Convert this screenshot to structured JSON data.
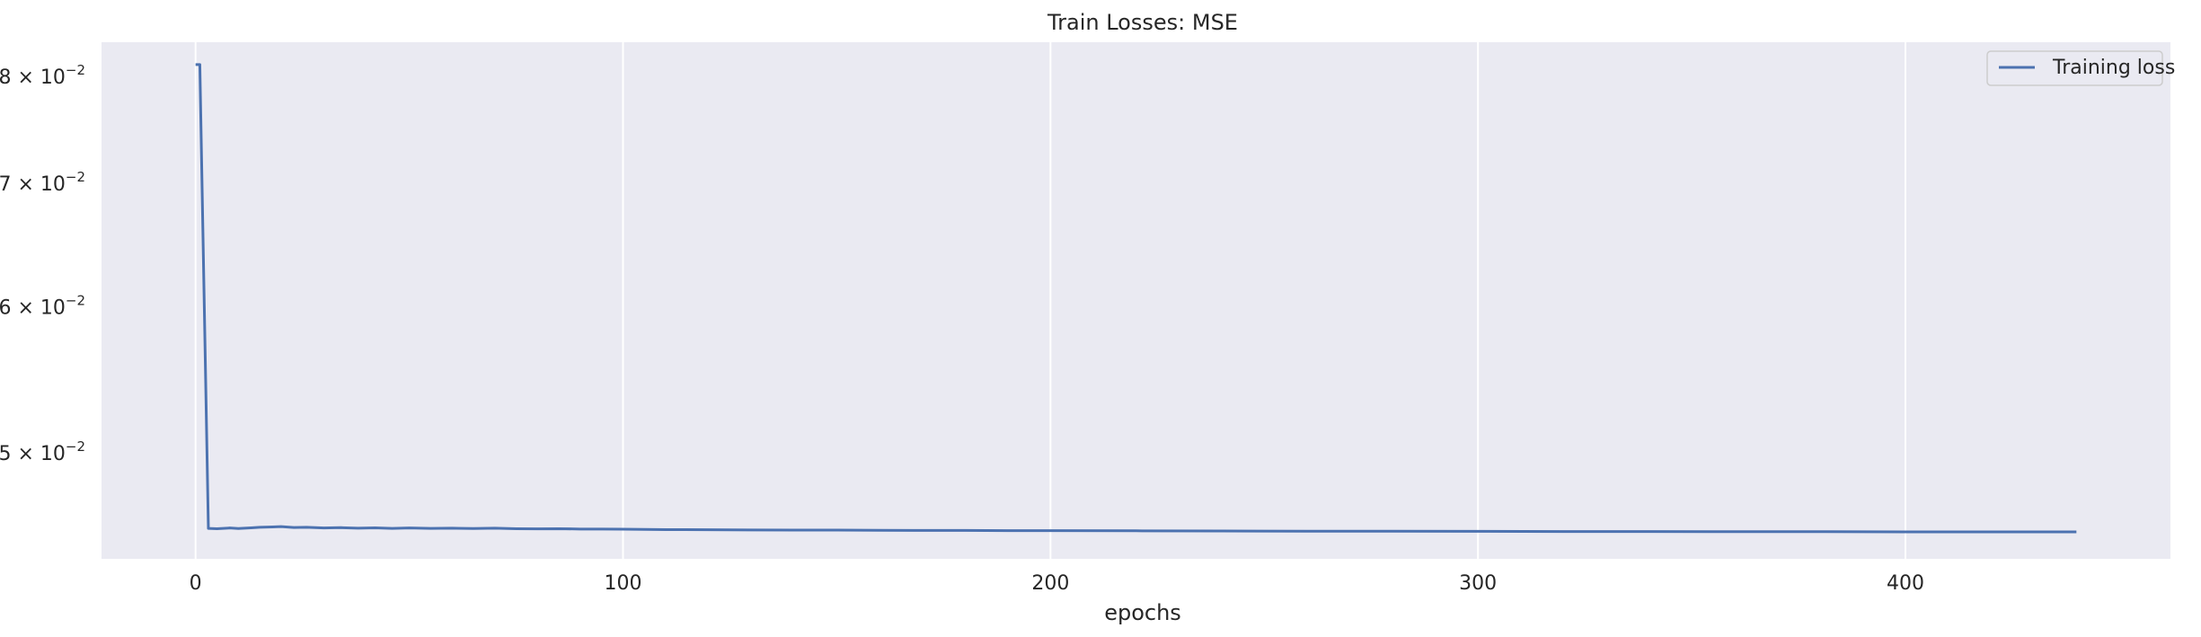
{
  "chart_data": {
    "type": "line",
    "title": "Train Losses:  MSE",
    "xlabel": "epochs",
    "ylabel": "",
    "yscale": "log",
    "xlim": [
      -22,
      462
    ],
    "ylim": [
      0.0438,
      0.0835
    ],
    "xticks": [
      0,
      100,
      200,
      300,
      400
    ],
    "yticks": [
      {
        "value": 0.08,
        "mantissa": "8",
        "base": "10",
        "exp": "−2"
      },
      {
        "value": 0.07,
        "mantissa": "7",
        "base": "10",
        "exp": "−2"
      },
      {
        "value": 0.06,
        "mantissa": "6",
        "base": "10",
        "exp": "−2"
      },
      {
        "value": 0.05,
        "mantissa": "5",
        "base": "10",
        "exp": "−2"
      }
    ],
    "grid": true,
    "legend_position": "top-right",
    "background_color": "#eaeaf2",
    "series": [
      {
        "name": "Training loss",
        "color": "#4c72b0",
        "points": [
          [
            0,
            0.0812
          ],
          [
            1,
            0.0812
          ],
          [
            3,
            0.0455
          ],
          [
            5,
            0.04548
          ],
          [
            8,
            0.04552
          ],
          [
            10,
            0.04549
          ],
          [
            13,
            0.04553
          ],
          [
            15,
            0.04556
          ],
          [
            18,
            0.04558
          ],
          [
            20,
            0.0456
          ],
          [
            23,
            0.04555
          ],
          [
            26,
            0.04556
          ],
          [
            30,
            0.04552
          ],
          [
            34,
            0.04554
          ],
          [
            38,
            0.04551
          ],
          [
            42,
            0.04553
          ],
          [
            46,
            0.0455
          ],
          [
            50,
            0.04552
          ],
          [
            55,
            0.0455
          ],
          [
            60,
            0.04551
          ],
          [
            65,
            0.04549
          ],
          [
            70,
            0.04551
          ],
          [
            75,
            0.04548
          ],
          [
            80,
            0.04547
          ],
          [
            85,
            0.04548
          ],
          [
            90,
            0.04546
          ],
          [
            95,
            0.04546
          ],
          [
            100,
            0.04545
          ],
          [
            110,
            0.04543
          ],
          [
            120,
            0.04542
          ],
          [
            130,
            0.04541
          ],
          [
            140,
            0.0454
          ],
          [
            150,
            0.0454
          ],
          [
            160,
            0.04539
          ],
          [
            170,
            0.04538
          ],
          [
            180,
            0.04538
          ],
          [
            190,
            0.04537
          ],
          [
            200,
            0.04537
          ],
          [
            220,
            0.04536
          ],
          [
            240,
            0.04535
          ],
          [
            260,
            0.04534
          ],
          [
            280,
            0.04534
          ],
          [
            300,
            0.04533
          ],
          [
            320,
            0.04532
          ],
          [
            340,
            0.04532
          ],
          [
            360,
            0.04531
          ],
          [
            380,
            0.04531
          ],
          [
            400,
            0.0453
          ],
          [
            420,
            0.0453
          ],
          [
            440,
            0.0453
          ]
        ]
      }
    ]
  }
}
